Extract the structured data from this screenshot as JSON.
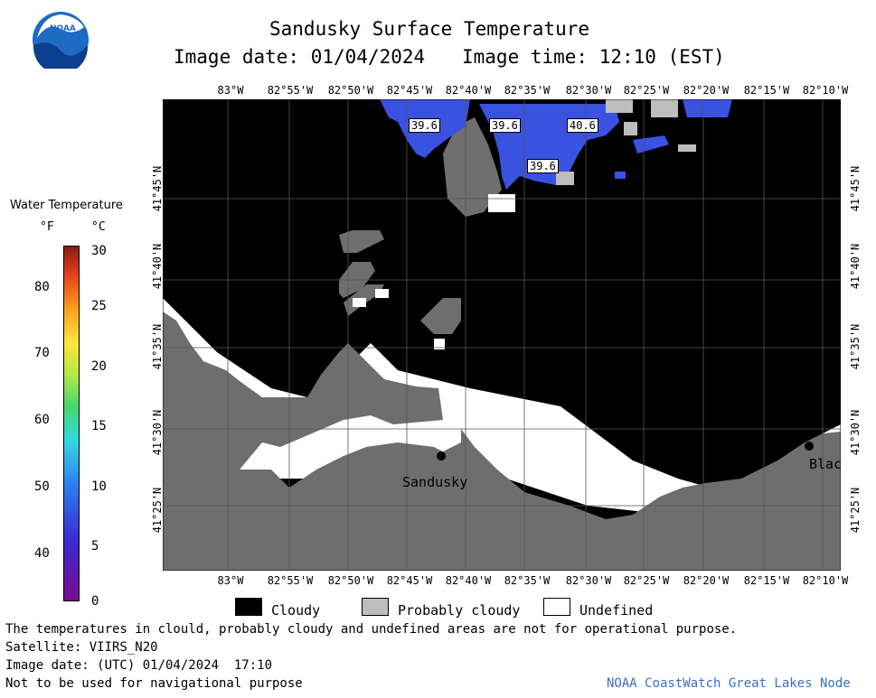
{
  "header": {
    "logo_text": "NOAA",
    "title": "Sandusky Surface Temperature",
    "image_date": "Image date: 01/04/2024",
    "image_time": "Image time: 12:10 (EST)"
  },
  "colorbar": {
    "title": "Water Temperature",
    "unit_f": "°F",
    "unit_c": "°C",
    "f_ticks": [
      "80",
      "70",
      "60",
      "50",
      "40"
    ],
    "c_ticks": [
      "30",
      "25",
      "20",
      "15",
      "10",
      "5",
      "0"
    ]
  },
  "map": {
    "lon_labels": [
      "83°W",
      "82°55'W",
      "82°50'W",
      "82°45'W",
      "82°40'W",
      "82°35'W",
      "82°30'W",
      "82°25'W",
      "82°20'W",
      "82°15'W",
      "82°10'W"
    ],
    "lat_labels": [
      "41°45'N",
      "41°40'N",
      "41°35'N",
      "41°30'N",
      "41°25'N"
    ],
    "temp_labels": [
      "39.6",
      "39.6",
      "40.6",
      "39.6"
    ],
    "places": [
      "Sandusky",
      "Blac"
    ],
    "colors": {
      "cloudy": "#000000",
      "probably_cloudy": "#bdbdbd",
      "land": "#6e6e6e",
      "undefined": "#ffffff",
      "water": "#3a52e0"
    }
  },
  "legend": {
    "cloudy": "Cloudy",
    "probably_cloudy": "Probably cloudy",
    "undefined": "Undefined"
  },
  "footer": {
    "disclaimer": "The temperatures in clould, probably cloudy and undefined areas are not for operational purpose.",
    "satellite": "Satellite: VIIRS_N20",
    "utc_date": "Image date: (UTC) 01/04/2024  17:10",
    "nav_warning": "Not to be used for navigational purpose",
    "credit": "NOAA CoastWatch Great Lakes Node"
  }
}
